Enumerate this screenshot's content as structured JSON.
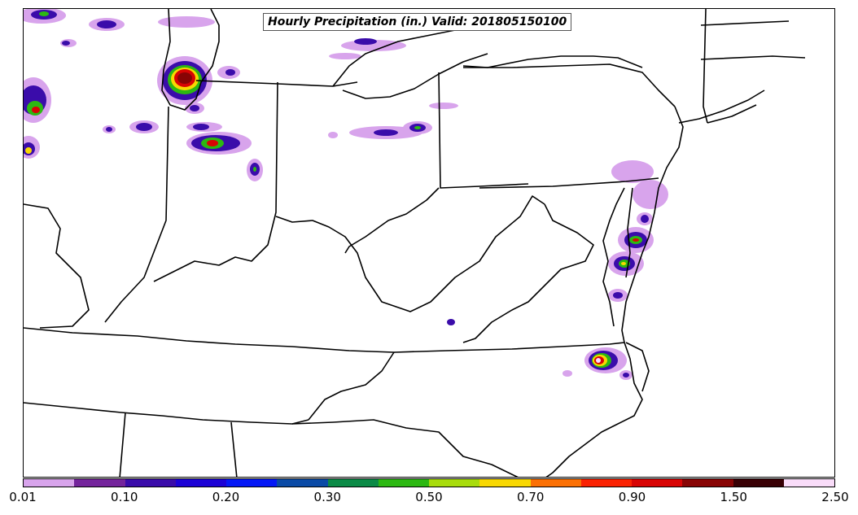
{
  "title": "Hourly Precipitation (in.) Valid: 201805150100",
  "colorbar": {
    "colors": [
      "#d8a4ec",
      "#74249c",
      "#3a0caa",
      "#1c02d6",
      "#0518f6",
      "#0a4aa6",
      "#0b8a46",
      "#2cb812",
      "#a8dc0c",
      "#f8d802",
      "#fb7004",
      "#fa2202",
      "#d80404",
      "#880404",
      "#380004",
      "#f9dcf9"
    ],
    "labels": [
      "0.01",
      "0.10",
      "0.20",
      "0.30",
      "0.50",
      "0.70",
      "0.90",
      "1.50",
      "2.50"
    ]
  },
  "precip_scale_colors": {
    "light": "#d8a4ec",
    "moderate": "#3a0caa",
    "heavy": "#2cb812",
    "very_heavy": "#f8d802",
    "extreme": "#d80404",
    "max": "#880404"
  }
}
